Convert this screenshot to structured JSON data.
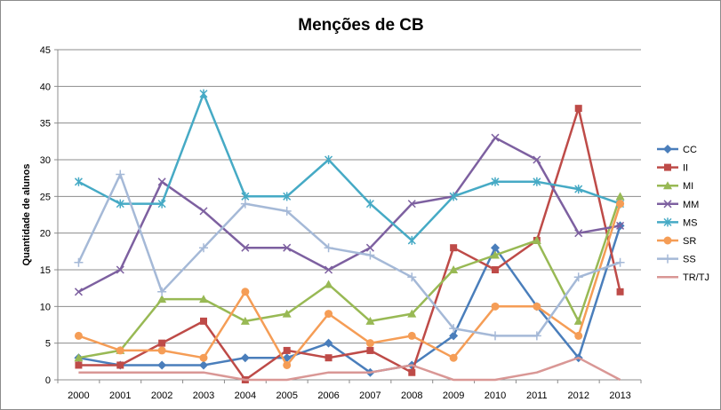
{
  "chart_data": {
    "type": "line",
    "title": "Menções de CB",
    "xlabel": "",
    "ylabel": "Quantidade de alunos",
    "ylim": [
      0,
      45
    ],
    "y_ticks": [
      0,
      5,
      10,
      15,
      20,
      25,
      30,
      35,
      40,
      45
    ],
    "grid": true,
    "legend_position": "right",
    "categories": [
      "2000",
      "2001",
      "2002",
      "2003",
      "2004",
      "2005",
      "2006",
      "2007",
      "2008",
      "2009",
      "2010",
      "2011",
      "2012",
      "2013"
    ],
    "series": [
      {
        "name": "CC",
        "color": "#4a7ebb",
        "marker": "diamond",
        "values": [
          3,
          2,
          2,
          2,
          3,
          3,
          5,
          1,
          2,
          6,
          18,
          10,
          3,
          21
        ]
      },
      {
        "name": "II",
        "color": "#be4b48",
        "marker": "square",
        "values": [
          2,
          2,
          5,
          8,
          0,
          4,
          3,
          4,
          1,
          18,
          15,
          19,
          37,
          12
        ]
      },
      {
        "name": "MI",
        "color": "#98b954",
        "marker": "triangle",
        "values": [
          3,
          4,
          11,
          11,
          8,
          9,
          13,
          8,
          9,
          15,
          17,
          19,
          8,
          25
        ]
      },
      {
        "name": "MM",
        "color": "#7d60a0",
        "marker": "x",
        "values": [
          12,
          15,
          27,
          23,
          18,
          18,
          15,
          18,
          24,
          25,
          33,
          30,
          20,
          21
        ]
      },
      {
        "name": "MS",
        "color": "#46aac5",
        "marker": "star",
        "values": [
          27,
          24,
          24,
          39,
          25,
          25,
          30,
          24,
          19,
          25,
          27,
          27,
          26,
          24
        ]
      },
      {
        "name": "SR",
        "color": "#f59d56",
        "marker": "circle",
        "values": [
          6,
          4,
          4,
          3,
          12,
          2,
          9,
          5,
          6,
          3,
          10,
          10,
          6,
          24
        ]
      },
      {
        "name": "SS",
        "color": "#a5b9d7",
        "marker": "plus",
        "values": [
          16,
          28,
          12,
          18,
          24,
          23,
          18,
          17,
          14,
          7,
          6,
          6,
          14,
          16
        ]
      },
      {
        "name": "TR/TJ",
        "color": "#d99795",
        "marker": "none",
        "values": [
          1,
          1,
          1,
          1,
          0,
          0,
          1,
          1,
          2,
          0,
          0,
          1,
          3,
          0
        ]
      }
    ]
  }
}
